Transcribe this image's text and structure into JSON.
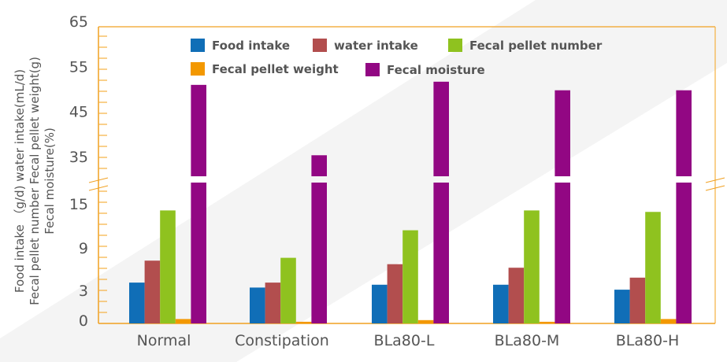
{
  "chart_data": {
    "type": "bar",
    "title": "",
    "xlabel": "",
    "ylabel_lines": [
      "Food intake （g/d)    water intake(mL/d)",
      "Fecal pellet number   Fecal pellet weight(g)",
      "Fecal moisture(%)"
    ],
    "categories": [
      "Normal",
      "Constipation",
      "BLa80-L",
      "BLa80-M",
      "BLa80-H"
    ],
    "series": [
      {
        "name": "Food intake",
        "color": "#106EB7",
        "values": [
          4.1,
          3.4,
          3.8,
          3.8,
          3.1
        ]
      },
      {
        "name": "water intake",
        "color": "#B24E4E",
        "values": [
          7.2,
          4.1,
          6.7,
          6.2,
          4.8
        ]
      },
      {
        "name": "Fecal pellet number",
        "color": "#8FC21F",
        "values": [
          14.1,
          7.6,
          11.4,
          14.1,
          13.9
        ]
      },
      {
        "name": "Fecal pellet weight",
        "color": "#F39800",
        "values": [
          0.4,
          0.15,
          0.3,
          0.15,
          0.4
        ]
      },
      {
        "name": "Fecal moisture",
        "color": "#920783",
        "values": [
          50.9,
          35.3,
          51.6,
          49.7,
          49.7
        ]
      }
    ],
    "y_axis": {
      "broken": true,
      "lower_segment": {
        "tick_labels": [
          "0",
          "3",
          "9",
          "15"
        ],
        "range": [
          0,
          15
        ]
      },
      "upper_segment": {
        "tick_labels": [
          "35",
          "45",
          "55",
          "65"
        ],
        "range": [
          30,
          65
        ]
      }
    },
    "legend_placement": "top-center",
    "grid": false,
    "axis_color": "#F0A020"
  }
}
